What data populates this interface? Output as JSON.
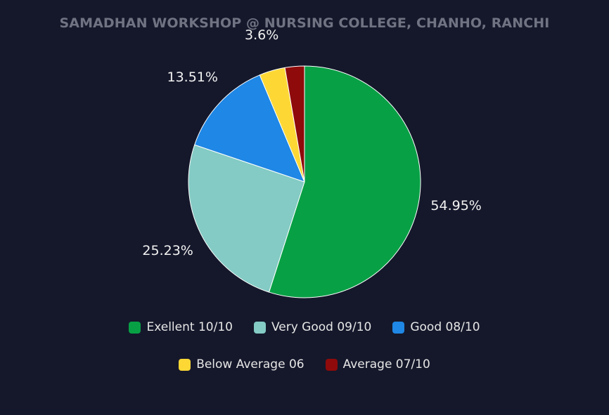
{
  "title": "SAMADHAN WORKSHOP @ NURSING COLLEGE, CHANHO, RANCHI",
  "chart_data": {
    "type": "pie",
    "title": "SAMADHAN WORKSHOP @ NURSING COLLEGE, CHANHO, RANCHI",
    "slices": [
      {
        "name": "Exellent 10/10",
        "value": 54.95,
        "label": "54.95%",
        "color": "#08a045"
      },
      {
        "name": "Very Good 09/10",
        "value": 25.23,
        "label": "25.23%",
        "color": "#83cbc4"
      },
      {
        "name": "Good 08/10",
        "value": 13.51,
        "label": "13.51%",
        "color": "#1f87e5"
      },
      {
        "name": "Below Average 06",
        "value": 3.6,
        "label": "3.6%",
        "color": "#fdd835"
      },
      {
        "name": "Average 07/10",
        "value": 2.71,
        "label": "",
        "color": "#8f0a0a"
      }
    ],
    "legend_position": "bottom",
    "start_angle": "top",
    "direction": "clockwise"
  },
  "colors": {
    "background": "#15182b",
    "title": "#6f7382",
    "label_text": "#f2f2f2",
    "slice_border": "#ffffff"
  }
}
